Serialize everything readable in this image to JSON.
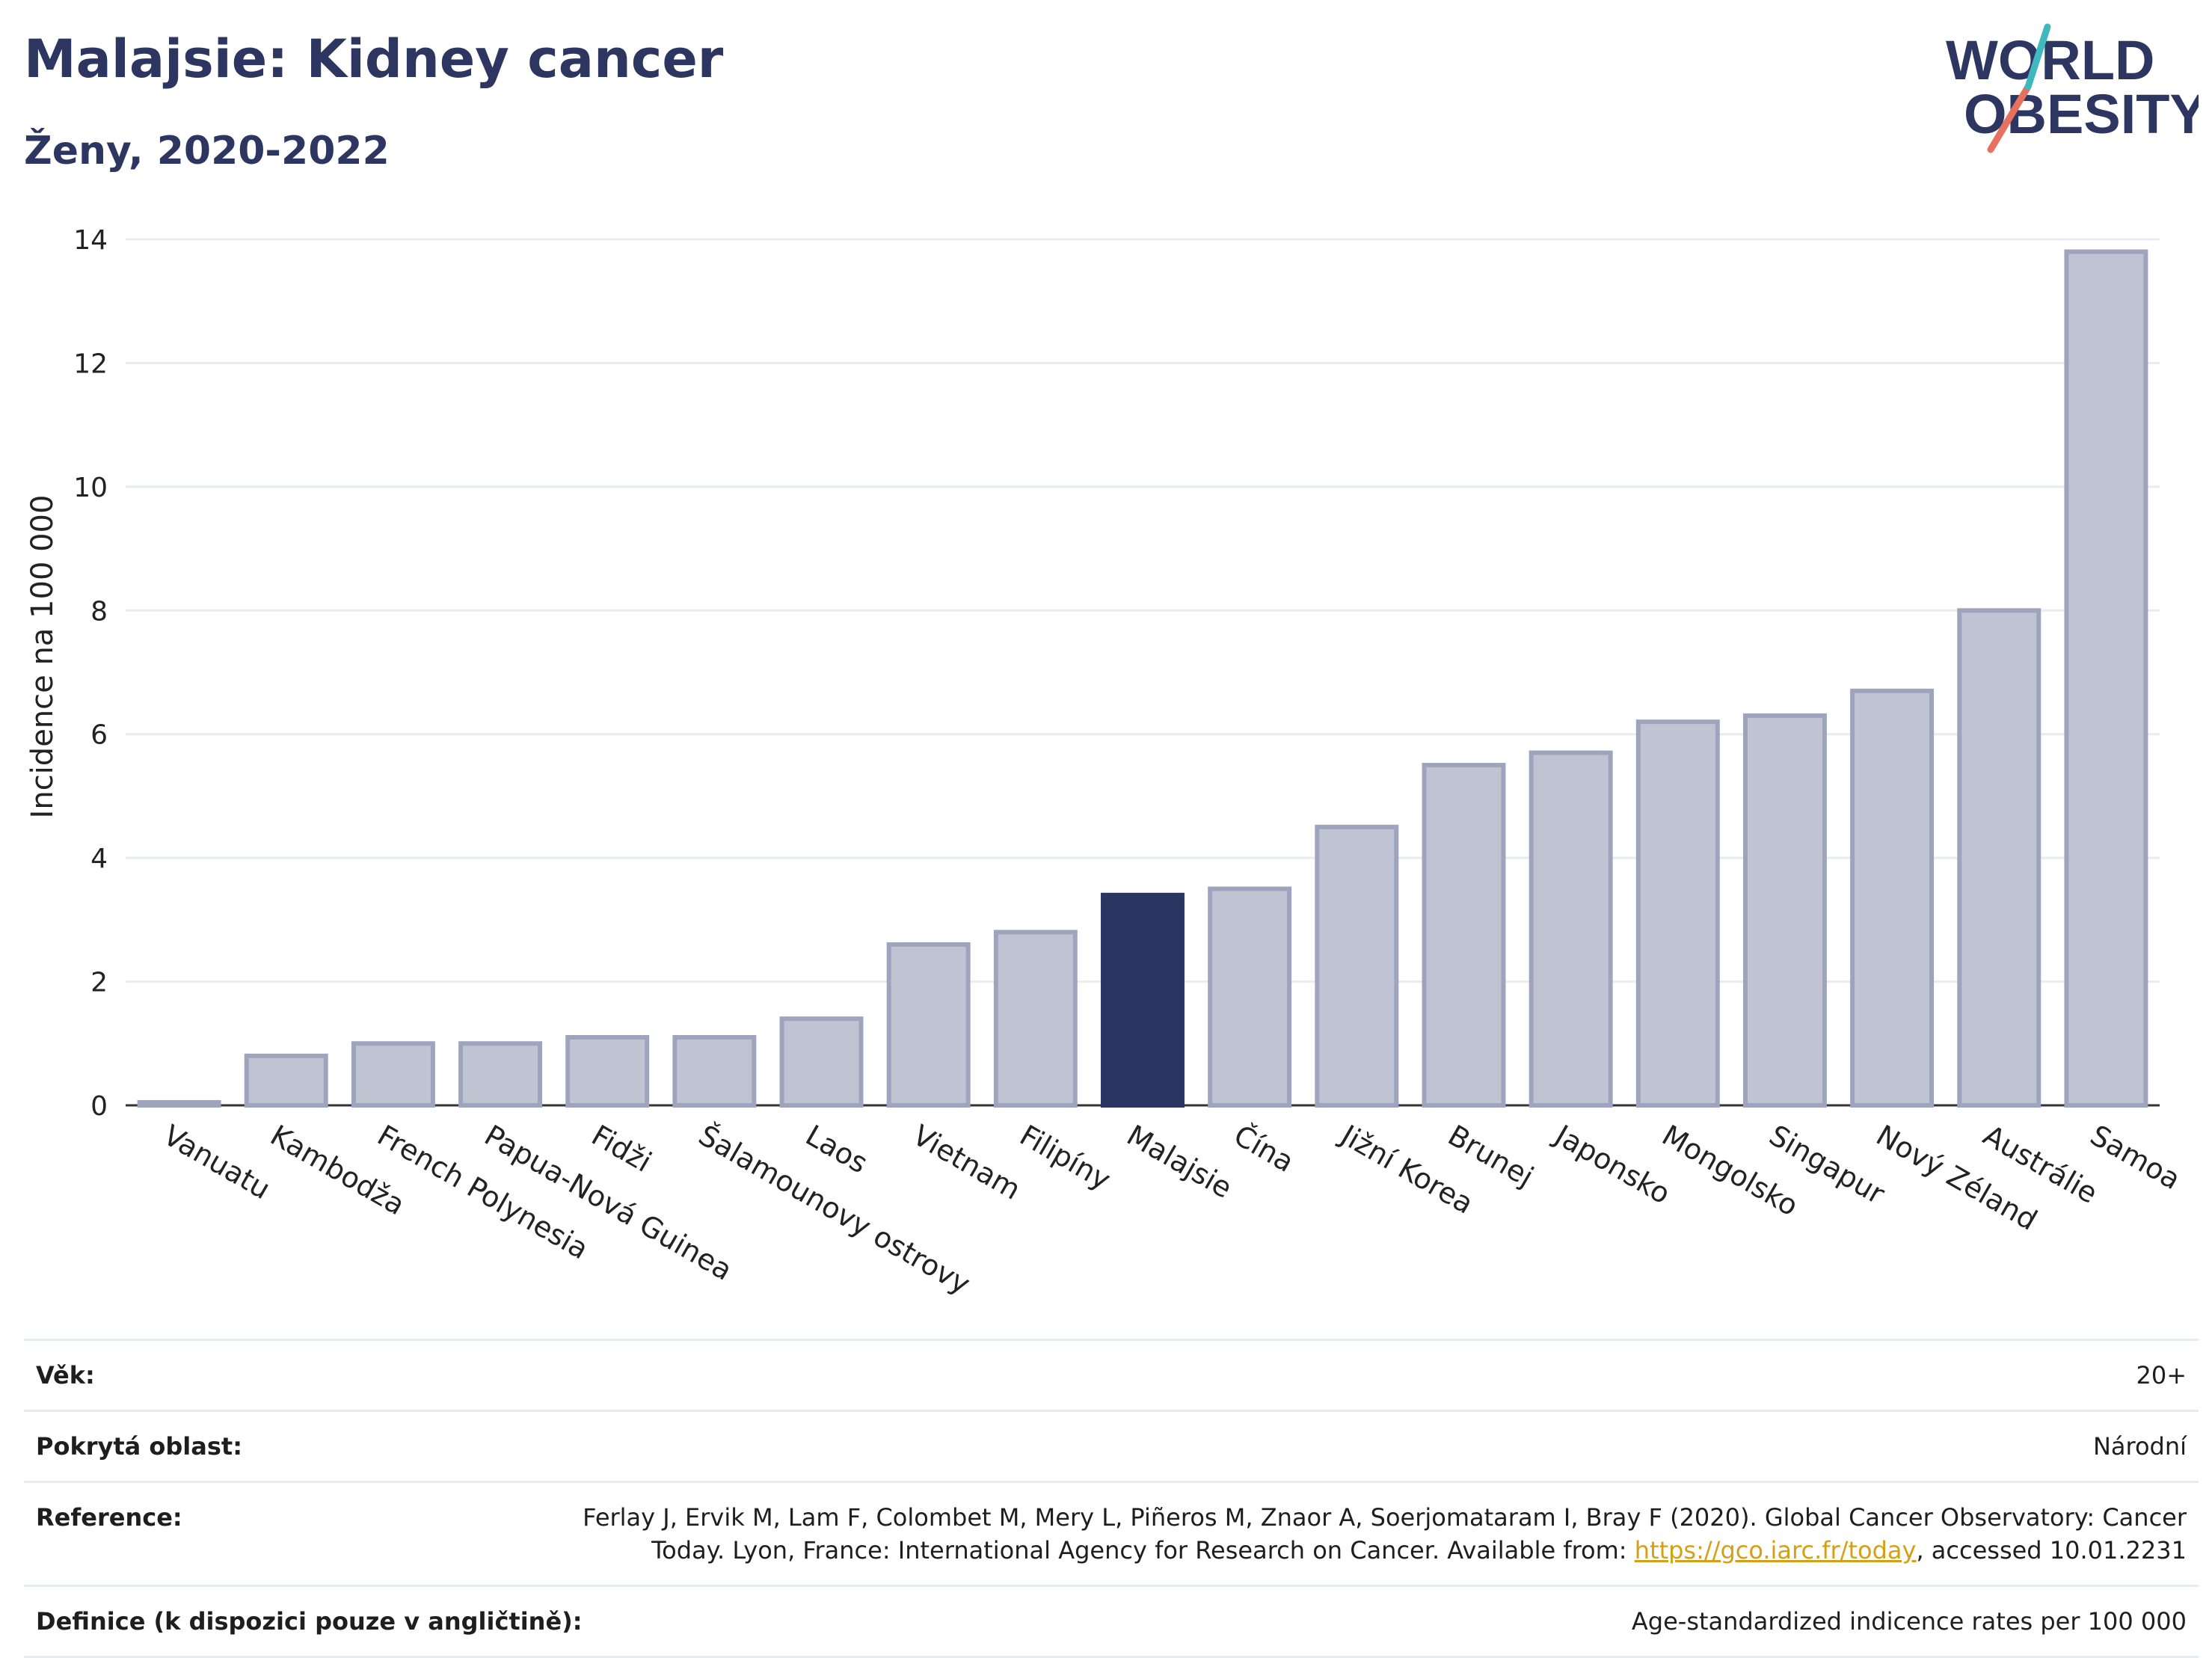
{
  "header": {
    "title": "Malajsie: Kidney cancer",
    "subtitle": "Ženy, 2020-2022"
  },
  "logo": {
    "line1": "WORLD",
    "line2": "OBESITY",
    "accent_teal": "#3fb8c0",
    "accent_red": "#e8705f",
    "text_color": "#2d3561"
  },
  "colors": {
    "bar_default": "#c0c4d2",
    "bar_border": "#9ea4bd",
    "bar_highlight": "#2b3561",
    "title": "#2d3561"
  },
  "chart_data": {
    "type": "bar",
    "title": "Malajsie: Kidney cancer",
    "subtitle": "Ženy, 2020-2022",
    "ylabel": "Incidence na 100 000",
    "xlabel": "",
    "ylim": [
      0,
      14
    ],
    "yticks": [
      "0",
      "2",
      "4",
      "6",
      "8",
      "10",
      "12",
      "14"
    ],
    "grid": true,
    "highlight": "Malajsie",
    "categories": [
      "Vanuatu",
      "Kambodža",
      "French Polynesia",
      "Papua-Nová Guinea",
      "Fidži",
      "Šalamounovy ostrovy",
      "Laos",
      "Vietnam",
      "Filipíny",
      "Malajsie",
      "Čína",
      "Jižní Korea",
      "Brunej",
      "Japonsko",
      "Mongolsko",
      "Singapur",
      "Nový Zéland",
      "Austrálie",
      "Samoa"
    ],
    "values": [
      0.0,
      0.8,
      1.0,
      1.0,
      1.1,
      1.1,
      1.4,
      2.6,
      2.8,
      3.4,
      3.5,
      4.5,
      5.5,
      5.7,
      6.2,
      6.3,
      6.7,
      8.0,
      13.8
    ]
  },
  "info": {
    "age_label": "Věk:",
    "age_value": "20+",
    "area_label": "Pokrytá oblast:",
    "area_value": "Národní",
    "reference_label": "Reference:",
    "reference_line1": "Ferlay J, Ervik M, Lam F, Colombet M, Mery L, Piñeros M, Znaor A, Soerjomataram I, Bray F (2020). Global Cancer Observatory: Cancer",
    "reference_line2_pre": "Today. Lyon, France: International Agency for Research on Cancer. Available from: ",
    "reference_link": "https://gco.iarc.fr/today",
    "reference_line2_post": ", accessed 10.01.2231",
    "definition_label": "Definice (k dispozici pouze v angličtině):",
    "definition_value": "Age-standardized indicence rates per 100 000"
  }
}
